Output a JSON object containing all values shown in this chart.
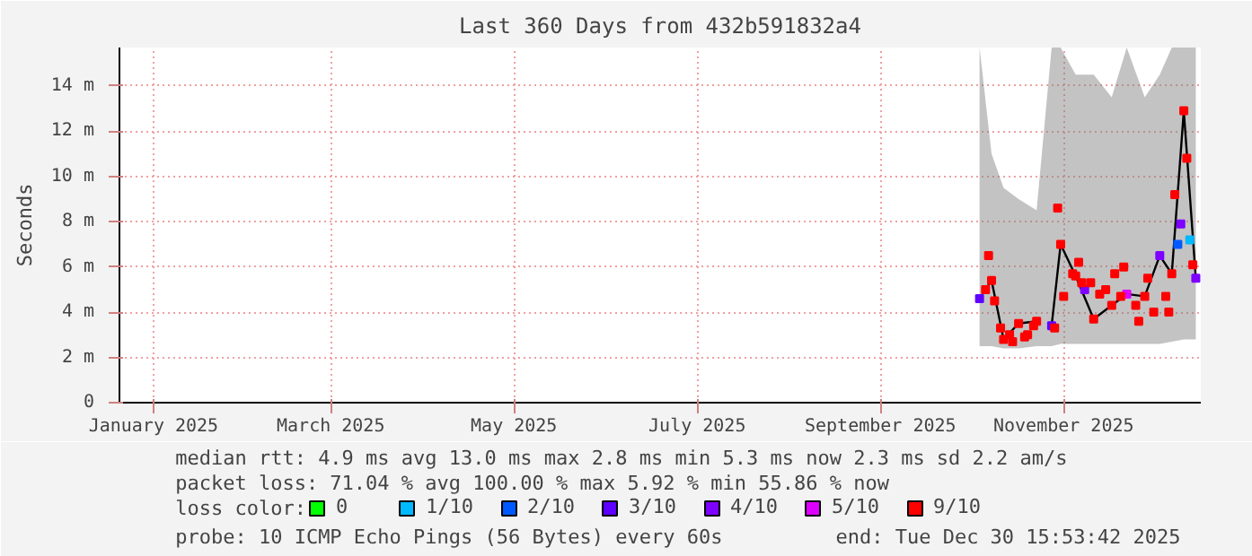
{
  "chart_data": {
    "type": "scatter",
    "title": "Last 360 Days from 432b591832a4",
    "ylabel": "Seconds",
    "legend_title": "loss color:",
    "legend": "bottom",
    "grid": true,
    "marker": "square",
    "xlim": [
      "2025-01-04T15:53",
      "2025-12-30T15:53"
    ],
    "xticks": [
      {
        "value": "2025-01-16",
        "label": "January 2025"
      },
      {
        "value": "2025-03-16",
        "label": "March 2025"
      },
      {
        "value": "2025-05-16",
        "label": "May 2025"
      },
      {
        "value": "2025-07-16",
        "label": "July 2025"
      },
      {
        "value": "2025-09-15",
        "label": "September 2025"
      },
      {
        "value": "2025-11-15",
        "label": "November 2025"
      }
    ],
    "ylim": [
      0,
      15.7
    ],
    "yticks": [
      0,
      {
        "value": 2,
        "label": "2 m"
      },
      {
        "value": 4,
        "label": "4 m"
      },
      {
        "value": 6,
        "label": "6 m"
      },
      {
        "value": 8,
        "label": "8 m"
      },
      {
        "value": 10,
        "label": "10 m"
      },
      {
        "value": 12,
        "label": "12 m"
      },
      {
        "value": 14,
        "label": "14 m"
      }
    ],
    "series": [
      {
        "type": "line",
        "marker": "none",
        "color": "#000000",
        "x": [
          "2025-10-18",
          "2025-10-22",
          "2025-10-26",
          "2025-10-31",
          "2025-11-06",
          "2025-11-08",
          "2025-11-11",
          "2025-11-14",
          "2025-11-19",
          "2025-11-25",
          "2025-12-01",
          "2025-12-06",
          "2025-12-12",
          "2025-12-17",
          "2025-12-21",
          "2025-12-25",
          "2025-12-29"
        ],
        "values": [
          4.6,
          5.4,
          2.8,
          3.5,
          3.6,
          null,
          3.4,
          7.0,
          5.6,
          3.7,
          4.3,
          4.8,
          4.7,
          6.5,
          5.7,
          12.9,
          5.5
        ],
        "lower": [
          2.5,
          2.5,
          2.4,
          2.4,
          2.5,
          null,
          2.5,
          2.6,
          2.6,
          2.6,
          2.6,
          2.6,
          2.6,
          2.6,
          2.7,
          2.8,
          2.8
        ],
        "upper": [
          15.7,
          11.0,
          9.5,
          9.0,
          8.5,
          null,
          15.7,
          15.7,
          14.5,
          14.5,
          13.5,
          15.7,
          13.5,
          14.5,
          15.7,
          15.7,
          15.7
        ]
      },
      {
        "name": "0",
        "color": "#00ff00"
      },
      {
        "name": "1/10",
        "color": "#00b8ff",
        "x": [
          "2025-12-27"
        ],
        "values": [
          7.2
        ]
      },
      {
        "name": "2/10",
        "color": "#0059ff",
        "x": [
          "2025-12-23"
        ],
        "values": [
          7.0
        ]
      },
      {
        "name": "3/10",
        "color": "#5e00ff",
        "x": [
          "2025-10-18",
          "2025-11-11"
        ],
        "values": [
          4.6,
          3.4
        ]
      },
      {
        "name": "4/10",
        "color": "#7e00ff",
        "x": [
          "2025-11-22",
          "2025-12-17",
          "2025-12-24",
          "2025-12-29"
        ],
        "values": [
          5.0,
          6.5,
          7.9,
          5.5
        ]
      },
      {
        "name": "5/10",
        "color": "#dd00ff",
        "x": [
          "2025-12-06"
        ],
        "values": [
          4.8
        ]
      },
      {
        "name": "9/10",
        "color": "#ff0000",
        "x": [
          "2025-10-20",
          "2025-10-21",
          "2025-10-22",
          "2025-10-23",
          "2025-10-25",
          "2025-10-26",
          "2025-10-28",
          "2025-10-29",
          "2025-10-31",
          "2025-11-02",
          "2025-11-03",
          "2025-11-05",
          "2025-11-06",
          "2025-11-12",
          "2025-11-13",
          "2025-11-14",
          "2025-11-15",
          "2025-11-18",
          "2025-11-19",
          "2025-11-20",
          "2025-11-21",
          "2025-11-24",
          "2025-11-25",
          "2025-11-27",
          "2025-11-29",
          "2025-12-01",
          "2025-12-02",
          "2025-12-04",
          "2025-12-05",
          "2025-12-09",
          "2025-12-10",
          "2025-12-12",
          "2025-12-13",
          "2025-12-15",
          "2025-12-19",
          "2025-12-20",
          "2025-12-21",
          "2025-12-22",
          "2025-12-25",
          "2025-12-26",
          "2025-12-28"
        ],
        "values": [
          5.0,
          6.5,
          5.4,
          4.5,
          3.3,
          2.8,
          3.0,
          2.7,
          3.5,
          2.9,
          3.0,
          3.4,
          3.6,
          3.3,
          8.6,
          7.0,
          4.7,
          5.7,
          5.6,
          6.2,
          5.3,
          5.3,
          3.7,
          4.8,
          5.0,
          4.3,
          5.7,
          4.7,
          6.0,
          4.3,
          3.6,
          4.7,
          5.5,
          4.0,
          4.7,
          4.0,
          5.7,
          9.2,
          12.9,
          10.8,
          6.1
        ]
      }
    ],
    "annotations": [
      "median rtt:  4.9 ms avg  13.0 ms max  2.8 ms min  5.3 ms now  2.3 ms sd  2.2   am/s",
      "packet loss: 71.04 % avg  100.00 % max  5.92 % min  55.86 % now",
      "probe:       10 ICMP Echo Pings (56 Bytes) every 60s",
      "end: Tue Dec 30 15:53:42 2025"
    ]
  }
}
